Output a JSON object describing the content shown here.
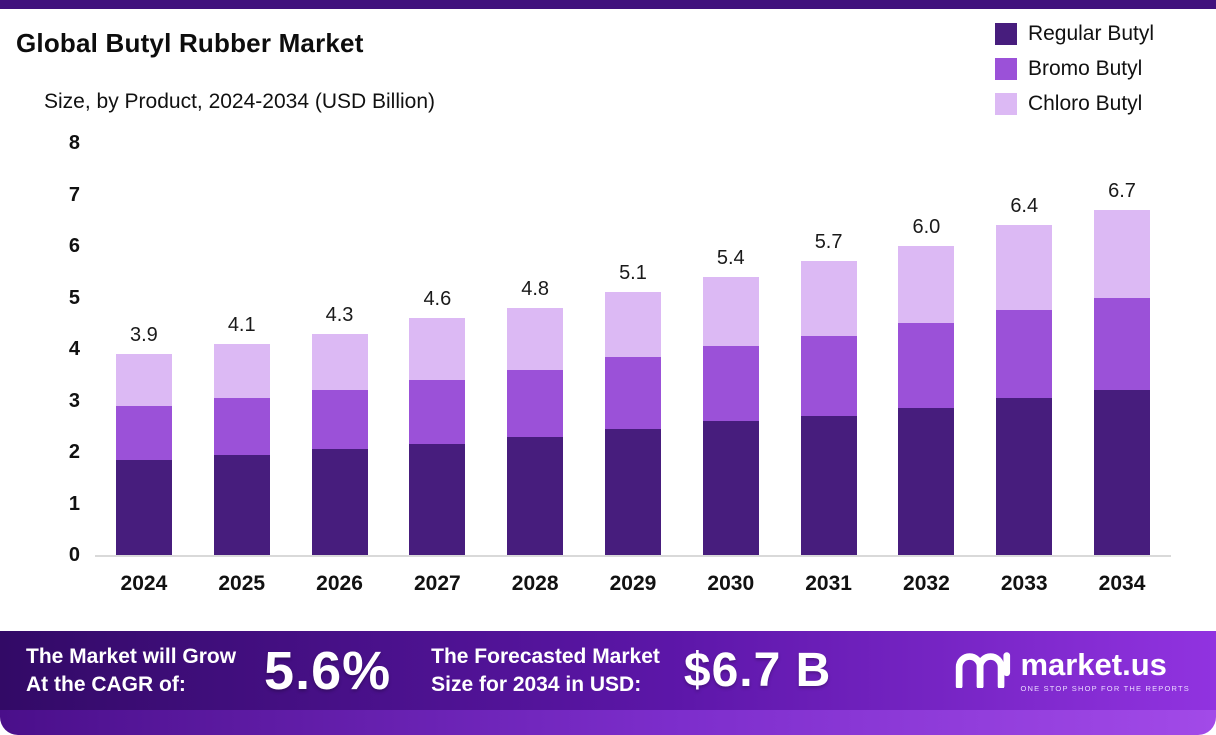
{
  "header": {
    "title": "Global Butyl Rubber Market",
    "subtitle": "Size, by Product, 2024-2034 (USD Billion)"
  },
  "chart_data": {
    "type": "bar",
    "stacked": true,
    "title": "Global Butyl Rubber Market Size, by Product, 2024-2034 (USD Billion)",
    "categories": [
      "2024",
      "2025",
      "2026",
      "2027",
      "2028",
      "2029",
      "2030",
      "2031",
      "2032",
      "2033",
      "2034"
    ],
    "series": [
      {
        "name": "Regular Butyl",
        "color": "#471d7d",
        "values": [
          1.85,
          1.95,
          2.05,
          2.15,
          2.3,
          2.45,
          2.6,
          2.7,
          2.85,
          3.05,
          3.2
        ]
      },
      {
        "name": "Bromo Butyl",
        "color": "#9b51d8",
        "values": [
          1.05,
          1.1,
          1.15,
          1.25,
          1.3,
          1.4,
          1.45,
          1.55,
          1.65,
          1.7,
          1.8
        ]
      },
      {
        "name": "Chloro Butyl",
        "color": "#dcb9f4",
        "values": [
          1.0,
          1.05,
          1.1,
          1.2,
          1.2,
          1.25,
          1.35,
          1.45,
          1.5,
          1.65,
          1.7
        ]
      }
    ],
    "totals": [
      3.9,
      4.1,
      4.3,
      4.6,
      4.8,
      5.1,
      5.4,
      5.7,
      6.0,
      6.4,
      6.7
    ],
    "xlabel": "",
    "ylabel": "",
    "ylim": [
      0,
      8
    ],
    "yticks": [
      0,
      1,
      2,
      3,
      4,
      5,
      6,
      7,
      8
    ],
    "grid": false,
    "legend_position": "top-right"
  },
  "banner": {
    "cagr_label_line1": "The Market will Grow",
    "cagr_label_line2": "At the CAGR of:",
    "cagr_value": "5.6%",
    "forecast_label_line1": "The Forecasted Market",
    "forecast_label_line2": "Size for 2034 in USD:",
    "forecast_value": "$6.7 B",
    "brand_name": "market.us",
    "brand_tagline": "ONE STOP SHOP FOR THE REPORTS"
  },
  "colors": {
    "top_strip": "#41127d",
    "banner_gradient_start": "#320a66",
    "banner_gradient_end": "#9133e0",
    "axis_line": "#d9d9d9"
  }
}
